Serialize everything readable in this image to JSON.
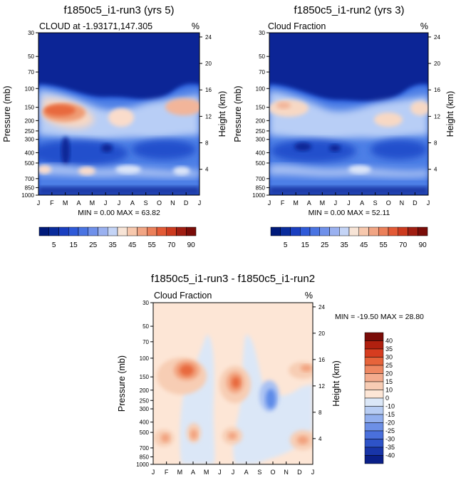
{
  "chart_data": [
    {
      "type": "heatmap",
      "title": "f1850c5_i1-run3 (yrs 5)",
      "subtitle_left": "CLOUD at -1.93171,147.305",
      "units": "%",
      "ylabel": "Pressure (mb)",
      "ylabel_right": "Height (km)",
      "x_ticks": [
        "J",
        "F",
        "M",
        "A",
        "M",
        "J",
        "J",
        "A",
        "S",
        "O",
        "N",
        "D",
        "J"
      ],
      "y_ticks": [
        "30",
        "50",
        "70",
        "100",
        "150",
        "200",
        "250",
        "300",
        "400",
        "500",
        "700",
        "850",
        "1000"
      ],
      "height_ticks": [
        "24",
        "20",
        "16",
        "12",
        "8",
        "4"
      ],
      "min_max_label": "MIN =   0.00 MAX =  63.82",
      "min": 0.0,
      "max": 63.82,
      "colorbar_labels": [
        "5",
        "15",
        "25",
        "35",
        "45",
        "55",
        "70",
        "90"
      ]
    },
    {
      "type": "heatmap",
      "title": "f1850c5_i1-run2 (yrs 3)",
      "subtitle_left": "Cloud Fraction",
      "units": "%",
      "ylabel": "Pressure (mb)",
      "ylabel_right": "Height (km)",
      "x_ticks": [
        "J",
        "F",
        "M",
        "A",
        "M",
        "J",
        "J",
        "A",
        "S",
        "O",
        "N",
        "D",
        "J"
      ],
      "y_ticks": [
        "30",
        "50",
        "70",
        "100",
        "150",
        "200",
        "250",
        "300",
        "400",
        "500",
        "700",
        "850",
        "1000"
      ],
      "height_ticks": [
        "24",
        "20",
        "16",
        "12",
        "8",
        "4"
      ],
      "min_max_label": "MIN =   0.00 MAX =  52.11",
      "min": 0.0,
      "max": 52.11,
      "colorbar_labels": [
        "5",
        "15",
        "25",
        "35",
        "45",
        "55",
        "70",
        "90"
      ]
    },
    {
      "type": "heatmap",
      "title": "f1850c5_i1-run3 - f1850c5_i1-run2",
      "subtitle_left": "Cloud Fraction",
      "units": "%",
      "ylabel": "Pressure (mb)",
      "ylabel_right": "Height (km)",
      "x_ticks": [
        "J",
        "F",
        "M",
        "A",
        "M",
        "J",
        "J",
        "A",
        "S",
        "O",
        "N",
        "D",
        "J"
      ],
      "y_ticks": [
        "30",
        "50",
        "70",
        "100",
        "150",
        "200",
        "250",
        "300",
        "400",
        "500",
        "700",
        "850",
        "1000"
      ],
      "height_ticks": [
        "24",
        "20",
        "16",
        "12",
        "8",
        "4"
      ],
      "min_max_label": "MIN = -19.50 MAX =  28.80",
      "min": -19.5,
      "max": 28.8,
      "colorbar_labels": [
        "40",
        "35",
        "30",
        "25",
        "20",
        "15",
        "10",
        "0",
        "-10",
        "-15",
        "-20",
        "-25",
        "-30",
        "-35",
        "-40"
      ]
    }
  ]
}
